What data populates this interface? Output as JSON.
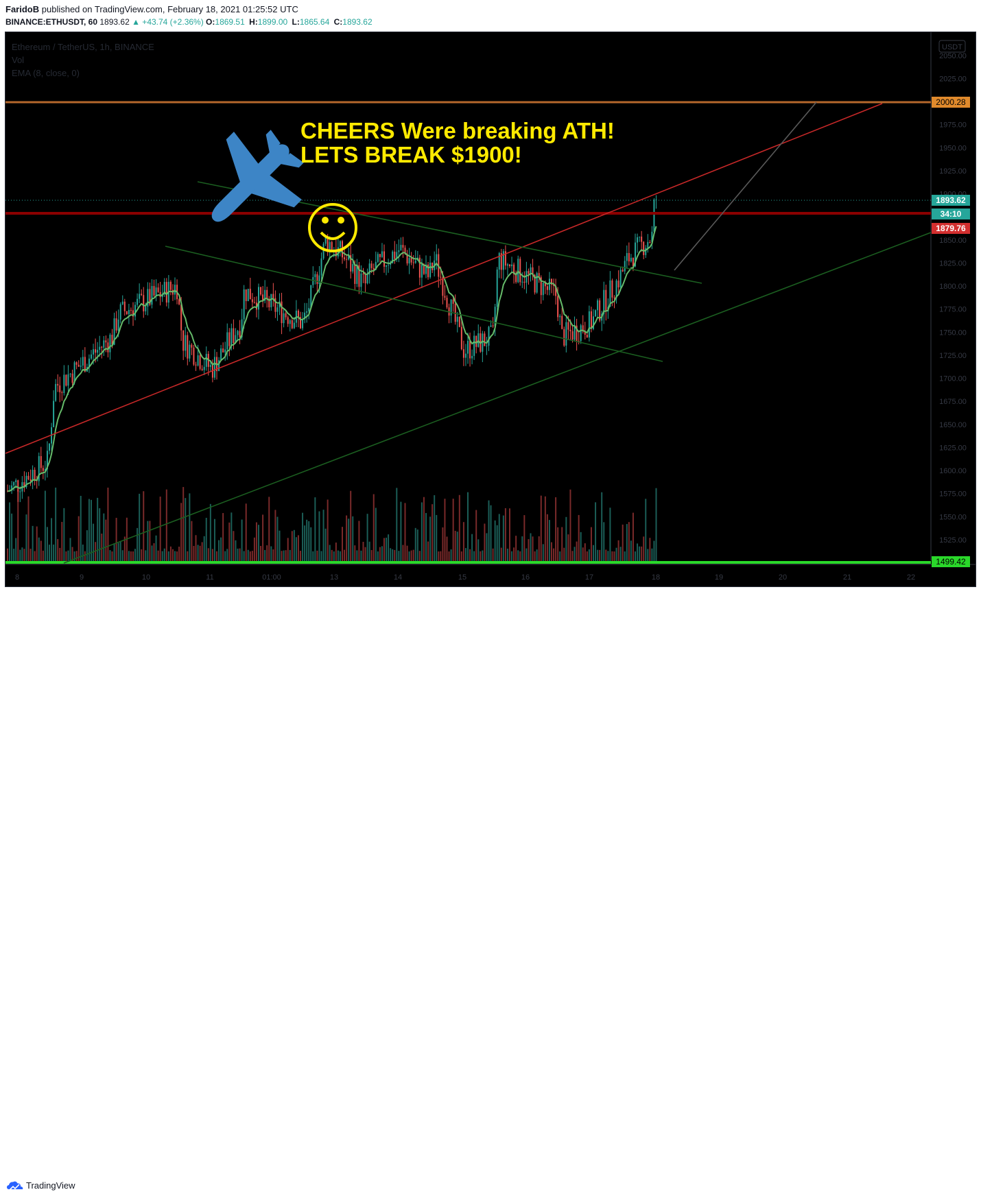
{
  "header": {
    "author": "FaridoB",
    "published_text": "published on TradingView.com, February 18, 2021 01:25:52 UTC",
    "symbol": "BINANCE:ETHUSDT, 60",
    "last": "1893.62",
    "change": "▲ +43.74 (+2.36%)",
    "o_label": "O:",
    "o_value": "1869.51",
    "h_label": "H:",
    "h_value": "1899.00",
    "l_label": "L:",
    "l_value": "1865.64",
    "c_label": "C:",
    "c_value": "1893.62"
  },
  "legend": {
    "title": "Ethereum / TetherUS, 1h, BINANCE",
    "vol": "Vol",
    "ema": "EMA (8, close, 0)"
  },
  "annotation": {
    "line1": "CHEERS Were breaking ATH!",
    "line2": "LETS BREAK $1900!"
  },
  "price_axis": {
    "currency": "USDT",
    "ticks": [
      "2050.00",
      "2025.00",
      "1975.00",
      "1950.00",
      "1925.00",
      "1900.00",
      "1850.00",
      "1825.00",
      "1800.00",
      "1775.00",
      "1750.00",
      "1725.00",
      "1700.00",
      "1675.00",
      "1650.00",
      "1625.00",
      "1600.00",
      "1575.00",
      "1550.00",
      "1525.00"
    ],
    "tags": [
      {
        "text": "2000.28",
        "color": "#e08a2c"
      },
      {
        "text": "1893.62",
        "color": "#26a69a"
      },
      {
        "text": "34:10",
        "color": "#26a69a"
      },
      {
        "text": "1879.76",
        "color": "#d32f2f"
      },
      {
        "text": "1499.42",
        "color": "#2ad82a"
      }
    ]
  },
  "time_axis": {
    "ticks": [
      "8",
      "9",
      "10",
      "11",
      "01:00",
      "13",
      "14",
      "15",
      "16",
      "17",
      "18",
      "19",
      "20",
      "21",
      "22"
    ]
  },
  "footer": {
    "brand": "TradingView"
  },
  "colors": {
    "up": "#26a69a",
    "down": "#ef5350",
    "ema": "#66bb6a",
    "resistance": "#b71c1c",
    "ath_line": "#b5672c",
    "support": "#1b5e20",
    "smiley": "#ffea00",
    "plane": "#3d85c6"
  },
  "chart_data": {
    "type": "candlestick",
    "y_scale": {
      "min": 1499.42,
      "max": 2050
    },
    "x_ticks": [
      "8",
      "9",
      "10",
      "11",
      "01:00",
      "13",
      "14",
      "15",
      "16",
      "17",
      "18",
      "19",
      "20",
      "21",
      "22"
    ],
    "horizontal_lines": [
      {
        "name": "ATH",
        "value": 2000.28
      },
      {
        "name": "resistance",
        "value": 1879.76
      },
      {
        "name": "floor",
        "value": 1499.42
      }
    ],
    "price_path": [
      {
        "x": "8",
        "y": 1578
      },
      {
        "x": "8",
        "y": 1610
      },
      {
        "x": "9",
        "y": 1690
      },
      {
        "x": "9",
        "y": 1745
      },
      {
        "x": "10",
        "y": 1770
      },
      {
        "x": "10",
        "y": 1800
      },
      {
        "x": "11",
        "y": 1740
      },
      {
        "x": "11",
        "y": 1710
      },
      {
        "x": "11",
        "y": 1760
      },
      {
        "x": "01:00",
        "y": 1795
      },
      {
        "x": "01:00",
        "y": 1760
      },
      {
        "x": "13",
        "y": 1770
      },
      {
        "x": "13",
        "y": 1850
      },
      {
        "x": "13",
        "y": 1830
      },
      {
        "x": "13",
        "y": 1800
      },
      {
        "x": "14",
        "y": 1815
      },
      {
        "x": "14",
        "y": 1840
      },
      {
        "x": "14",
        "y": 1810
      },
      {
        "x": "15",
        "y": 1830
      },
      {
        "x": "15",
        "y": 1730
      },
      {
        "x": "15",
        "y": 1745
      },
      {
        "x": "16",
        "y": 1830
      },
      {
        "x": "16",
        "y": 1810
      },
      {
        "x": "16",
        "y": 1790
      },
      {
        "x": "17",
        "y": 1745
      },
      {
        "x": "17",
        "y": 1760
      },
      {
        "x": "17",
        "y": 1810
      },
      {
        "x": "18",
        "y": 1830
      },
      {
        "x": "18",
        "y": 1860
      },
      {
        "x": "18",
        "y": 1893.62
      }
    ],
    "last_close": 1893.62,
    "countdown": "34:10"
  }
}
